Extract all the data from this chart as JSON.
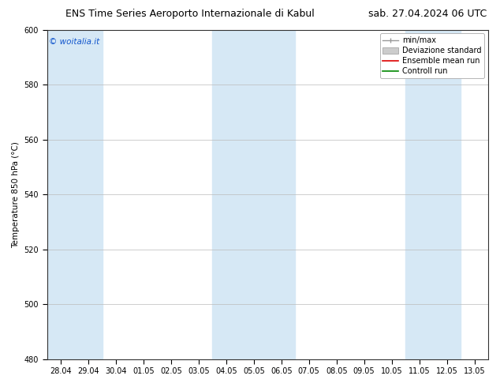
{
  "title_left": "ENS Time Series Aeroporto Internazionale di Kabul",
  "title_right": "sab. 27.04.2024 06 UTC",
  "ylabel": "Temperature 850 hPa (°C)",
  "ylim": [
    480,
    600
  ],
  "yticks": [
    480,
    500,
    520,
    540,
    560,
    580,
    600
  ],
  "x_labels": [
    "28.04",
    "29.04",
    "30.04",
    "01.05",
    "02.05",
    "03.05",
    "04.05",
    "05.05",
    "06.05",
    "07.05",
    "08.05",
    "09.05",
    "10.05",
    "11.05",
    "12.05",
    "13.05"
  ],
  "n_ticks": 16,
  "bg_color": "#ffffff",
  "shade_color": "#d6e8f5",
  "shade_indices": [
    0,
    1,
    6,
    7,
    8,
    13,
    14
  ],
  "watermark": "© woitalia.it",
  "watermark_color": "#1155cc",
  "legend_entries": [
    "min/max",
    "Deviazione standard",
    "Ensemble mean run",
    "Controll run"
  ],
  "minmax_color": "#999999",
  "std_color": "#cccccc",
  "mean_color": "#dd0000",
  "control_color": "#008800",
  "title_fontsize": 9,
  "axis_label_fontsize": 7.5,
  "tick_fontsize": 7,
  "legend_fontsize": 7
}
